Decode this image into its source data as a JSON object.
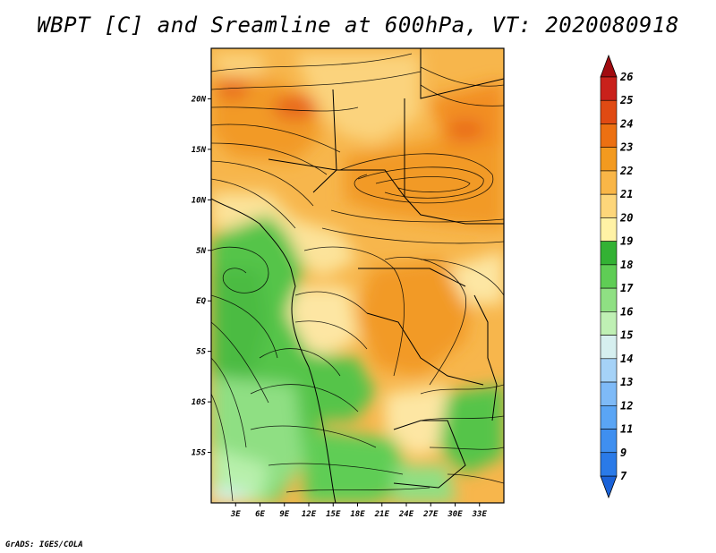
{
  "title": "WBPT [C] and Sreamline at 600hPa, VT: 2020080918",
  "footer": "GrADS: IGES/COLA",
  "map": {
    "lon_range": [
      0,
      36
    ],
    "lat_range": [
      -20,
      25
    ],
    "lon_ticks": [
      "3E",
      "6E",
      "9E",
      "12E",
      "15E",
      "18E",
      "21E",
      "24E",
      "27E",
      "30E",
      "33E"
    ],
    "lat_ticks": [
      "20N",
      "15N",
      "10N",
      "5N",
      "EQ",
      "5S",
      "10S",
      "15S"
    ],
    "variable": "WBPT",
    "level": "600hPa"
  },
  "colorbar": {
    "labels": [
      "7",
      "9",
      "11",
      "12",
      "13",
      "14",
      "15",
      "16",
      "17",
      "18",
      "19",
      "20",
      "21",
      "22",
      "23",
      "24",
      "25",
      "26"
    ],
    "colors": [
      "#1a62d8",
      "#2a7ae8",
      "#3f8ff0",
      "#5aa5f5",
      "#7ebaf7",
      "#a5d2f7",
      "#d6efef",
      "#bff0b4",
      "#8fe083",
      "#5fcd55",
      "#33b234",
      "#fff2a5",
      "#fdd67a",
      "#f9b647",
      "#f39a1f",
      "#ec7012",
      "#e04a13",
      "#c9211b",
      "#a10b10"
    ]
  }
}
